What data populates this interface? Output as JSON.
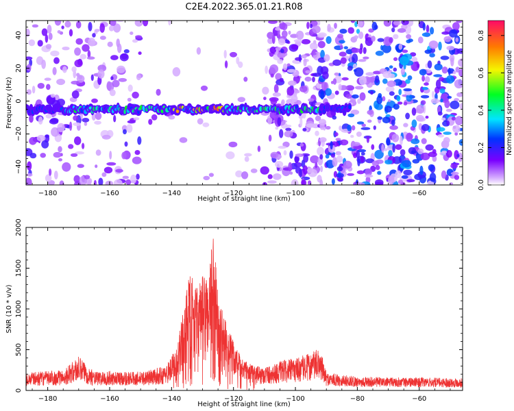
{
  "title": "C2E4.2022.365.01.21.R08",
  "chart_data": [
    {
      "type": "heatmap",
      "xlabel": "Height of straight line (km)",
      "ylabel": "Frequency (Hz)",
      "xlim": [
        -187,
        -46
      ],
      "ylim": [
        -51,
        49
      ],
      "xticks": [
        -180,
        -160,
        -140,
        -120,
        -100,
        -80,
        -60
      ],
      "yticks": [
        -40,
        -20,
        0,
        20,
        40
      ],
      "colorbar": {
        "label": "Normalized spectral amplitude",
        "range": [
          0.0,
          0.88
        ],
        "ticks": [
          0.0,
          0.2,
          0.4,
          0.6,
          0.8
        ],
        "colormap": "gist_rainbow_r with white at zero"
      },
      "signal_band": {
        "center_freq_hz": -5,
        "x_range": [
          -187,
          -82
        ],
        "strong_x_range": [
          -175,
          -92
        ],
        "peak_x": [
          -131,
          -138,
          -125
        ]
      },
      "noise_regions": [
        {
          "x_range": [
            -187,
            -150
          ],
          "level": "medium"
        },
        {
          "x_range": [
            -150,
            -110
          ],
          "level": "low"
        },
        {
          "x_range": [
            -110,
            -92
          ],
          "level": "medium"
        },
        {
          "x_range": [
            -92,
            -46
          ],
          "level": "high"
        }
      ],
      "grid": false
    },
    {
      "type": "line",
      "xlabel": "Height of straight line (km)",
      "ylabel": "SNR (10 * v/v)",
      "xlim": [
        -187,
        -46
      ],
      "ylim": [
        0,
        2000
      ],
      "xticks": [
        -180,
        -160,
        -140,
        -120,
        -100,
        -80,
        -60
      ],
      "yticks": [
        0,
        500,
        1000,
        1500,
        2000
      ],
      "color": "#ee3333",
      "envelope": {
        "x": [
          -187,
          -175,
          -170,
          -165,
          -160,
          -150,
          -142,
          -138,
          -136,
          -134,
          -132,
          -130,
          -128,
          -126.5,
          -125,
          -123,
          -121,
          -119,
          -117,
          -115,
          -112,
          -108,
          -104,
          -100,
          -96,
          -92,
          -90,
          -80,
          -70,
          -60,
          -46
        ],
        "y": [
          220,
          250,
          420,
          230,
          240,
          230,
          300,
          560,
          1080,
          1450,
          1250,
          1400,
          1480,
          1980,
          1180,
          900,
          700,
          520,
          390,
          330,
          300,
          310,
          370,
          400,
          450,
          520,
          220,
          170,
          160,
          160,
          150
        ]
      },
      "grid": false
    }
  ]
}
